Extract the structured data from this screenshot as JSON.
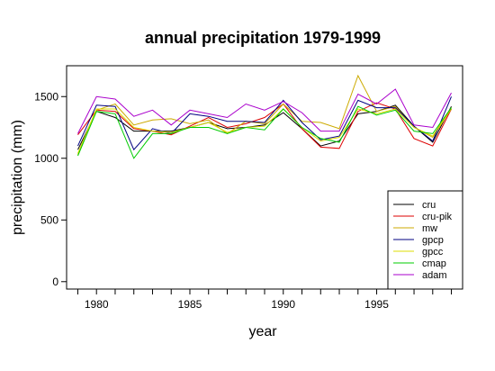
{
  "chart_data": {
    "type": "line",
    "title": "annual precipitation 1979-1999",
    "xlabel": "year",
    "ylabel": "precipitation (mm)",
    "xlim": [
      1978.4,
      1999.6
    ],
    "ylim": [
      -60,
      1750
    ],
    "x_ticks": [
      1980,
      1985,
      1990,
      1995
    ],
    "y_ticks": [
      0,
      500,
      1000,
      1500
    ],
    "grid": false,
    "legend_position": "bottom-right",
    "x": [
      1979,
      1980,
      1981,
      1982,
      1983,
      1984,
      1985,
      1986,
      1987,
      1988,
      1989,
      1990,
      1991,
      1992,
      1993,
      1994,
      1995,
      1996,
      1997,
      1998,
      1999
    ],
    "series": [
      {
        "name": "cru",
        "color": "#000000",
        "values": [
          1070,
          1380,
          1330,
          1220,
          1220,
          1220,
          1250,
          1290,
          1240,
          1250,
          1270,
          1370,
          1240,
          1100,
          1140,
          1360,
          1380,
          1430,
          1260,
          1130,
          1420
        ]
      },
      {
        "name": "cru-pik",
        "color": "#dd0000",
        "values": [
          1190,
          1390,
          1380,
          1240,
          1220,
          1190,
          1260,
          1330,
          1250,
          1280,
          1330,
          1440,
          1240,
          1090,
          1080,
          1380,
          1450,
          1400,
          1160,
          1100,
          1400
        ]
      },
      {
        "name": "mw",
        "color": "#ccaa00",
        "values": [
          1030,
          1390,
          1440,
          1270,
          1310,
          1320,
          1280,
          1310,
          1200,
          1300,
          1280,
          1440,
          1300,
          1290,
          1240,
          1670,
          1380,
          1420,
          1250,
          1170,
          1400
        ]
      },
      {
        "name": "gpcp",
        "color": "#000080",
        "values": [
          1100,
          1430,
          1420,
          1070,
          1240,
          1200,
          1360,
          1340,
          1300,
          1300,
          1290,
          1470,
          1290,
          1150,
          1180,
          1470,
          1410,
          1410,
          1260,
          1140,
          1500
        ]
      },
      {
        "name": "gpcc",
        "color": "#dddd00",
        "values": [
          1040,
          1400,
          1400,
          1250,
          1220,
          1210,
          1250,
          1290,
          1210,
          1250,
          1260,
          1400,
          1250,
          1140,
          1170,
          1400,
          1360,
          1400,
          1250,
          1180,
          1410
        ]
      },
      {
        "name": "cmap",
        "color": "#00cc00",
        "values": [
          1020,
          1380,
          1360,
          1000,
          1200,
          1200,
          1250,
          1250,
          1200,
          1250,
          1230,
          1400,
          1250,
          1160,
          1130,
          1420,
          1350,
          1390,
          1220,
          1200,
          1410
        ]
      },
      {
        "name": "adam",
        "color": "#aa00cc",
        "values": [
          1200,
          1500,
          1480,
          1340,
          1390,
          1270,
          1390,
          1360,
          1330,
          1440,
          1390,
          1460,
          1370,
          1220,
          1220,
          1520,
          1440,
          1560,
          1270,
          1250,
          1530
        ]
      }
    ]
  }
}
